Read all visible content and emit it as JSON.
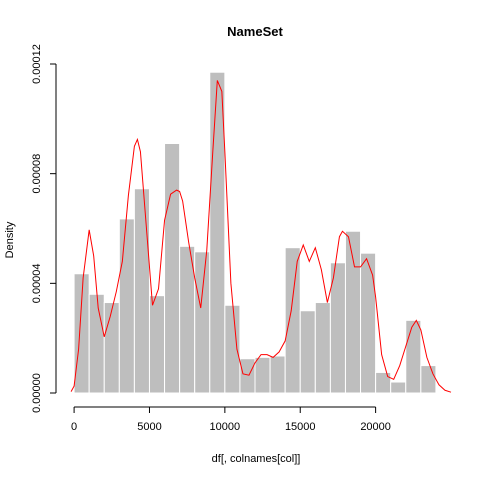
{
  "chart_data": {
    "type": "bar",
    "title": "NameSet",
    "xlabel": "df[, colnames[col]]",
    "ylabel": "Density",
    "bin_width": 1000,
    "bin_starts": [
      0,
      1000,
      2000,
      3000,
      4000,
      5000,
      6000,
      7000,
      8000,
      9000,
      10000,
      11000,
      12000,
      13000,
      14000,
      15000,
      16000,
      17000,
      18000,
      19000,
      20000,
      21000,
      22000,
      23000
    ],
    "values": [
      4.35e-05,
      3.6e-05,
      3.3e-05,
      6.35e-05,
      7.45e-05,
      3.55e-05,
      9.1e-05,
      5.35e-05,
      5.15e-05,
      0.000117,
      3.2e-05,
      1.25e-05,
      1.3e-05,
      1.35e-05,
      5.3e-05,
      3e-05,
      3.3e-05,
      4.75e-05,
      5.9e-05,
      5.1e-05,
      7.5e-06,
      4e-06,
      2.65e-05,
      1e-05
    ],
    "xlim": [
      -1200,
      25000
    ],
    "ylim": [
      0,
      0.00012
    ],
    "x_ticks": [
      0,
      5000,
      10000,
      15000,
      20000
    ],
    "x_tick_labels": [
      "0",
      "5000",
      "10000",
      "15000",
      "20000"
    ],
    "y_ticks": [
      0,
      4e-05,
      8e-05,
      0.00012
    ],
    "y_tick_labels": [
      "0.00000",
      "0.00004",
      "0.00008",
      "0.00012"
    ],
    "bar_color": "#bebebe",
    "bar_edge_color": "#ffffff",
    "density_curve": {
      "color": "#ff0000",
      "x": [
        -200,
        0,
        300,
        600,
        1000,
        1300,
        1600,
        2000,
        2400,
        2800,
        3200,
        3600,
        4000,
        4200,
        4400,
        4800,
        5200,
        5600,
        6000,
        6400,
        6800,
        7000,
        7200,
        7600,
        8000,
        8400,
        8800,
        9200,
        9500,
        9800,
        10000,
        10400,
        10800,
        11200,
        11600,
        12000,
        12400,
        12800,
        13200,
        13600,
        14000,
        14400,
        14800,
        15200,
        15600,
        16000,
        16400,
        16800,
        17200,
        17600,
        17800,
        18200,
        18600,
        19000,
        19400,
        19800,
        20000,
        20400,
        20800,
        21200,
        21600,
        22000,
        22400,
        22700,
        23000,
        23400,
        23800,
        24200,
        24600,
        25000
      ],
      "y": [
        5e-07,
        2.5e-06,
        1.6e-05,
        4.2e-05,
        5.95e-05,
        5e-05,
        3.1e-05,
        2.05e-05,
        2.8e-05,
        3.7e-05,
        4.8e-05,
        7.2e-05,
        9e-05,
        9.25e-05,
        8.8e-05,
        6e-05,
        3.2e-05,
        3.8e-05,
        6.3e-05,
        7.25e-05,
        7.4e-05,
        7.35e-05,
        7e-05,
        5.5e-05,
        4.2e-05,
        3.1e-05,
        5.2e-05,
        8.8e-05,
        0.000114,
        0.00011,
        8.8e-05,
        4e-05,
        1.6e-05,
        7e-06,
        6.5e-06,
        1.1e-05,
        1.4e-05,
        1.4e-05,
        1.3e-05,
        1.5e-05,
        1.9e-05,
        3e-05,
        4.8e-05,
        5.4e-05,
        4.8e-05,
        5.3e-05,
        4.5e-05,
        3.3e-05,
        4.2e-05,
        5.7e-05,
        5.9e-05,
        5.7e-05,
        4.6e-05,
        4.6e-05,
        4.9e-05,
        4.3e-05,
        3.5e-05,
        1.4e-05,
        6e-06,
        5e-06,
        1e-05,
        1.7e-05,
        2.4e-05,
        2.65e-05,
        2.3e-05,
        1.3e-05,
        7e-06,
        3e-06,
        1e-06,
        3e-07
      ]
    }
  }
}
